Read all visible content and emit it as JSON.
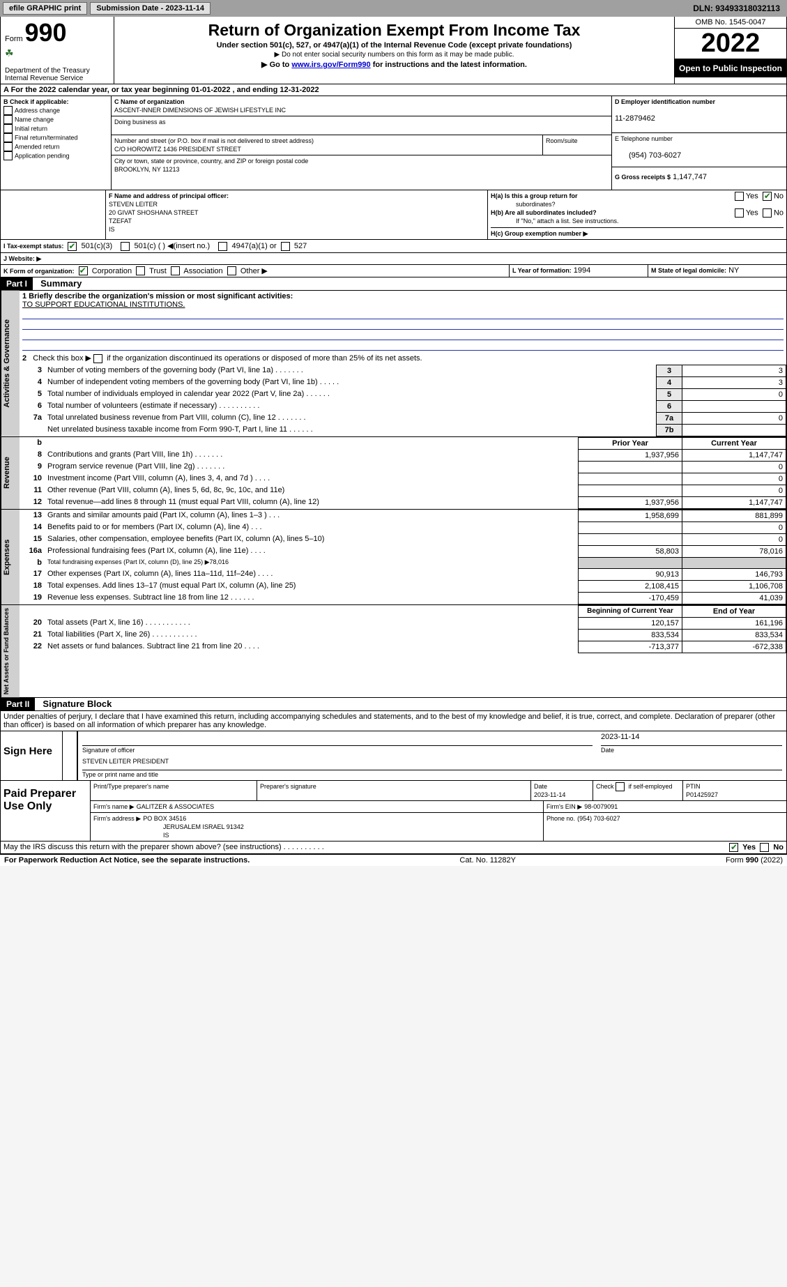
{
  "topbar": {
    "efile": "efile GRAPHIC print",
    "submission": "Submission Date - 2023-11-14",
    "dln": "DLN: 93493318032113"
  },
  "header": {
    "form_label_small": "Form",
    "form_number": "990",
    "dept": "Department of the Treasury",
    "irs": "Internal Revenue Service",
    "title": "Return of Organization Exempt From Income Tax",
    "sub1": "Under section 501(c), 527, or 4947(a)(1) of the Internal Revenue Code (except private foundations)",
    "sub2": "▶ Do not enter social security numbers on this form as it may be made public.",
    "sub3_pre": "▶ Go to ",
    "sub3_link": "www.irs.gov/Form990",
    "sub3_post": " for instructions and the latest information.",
    "omb": "OMB No. 1545-0047",
    "year": "2022",
    "open": "Open to Public Inspection"
  },
  "A_line": "A For the 2022 calendar year, or tax year beginning 01-01-2022     , and ending 12-31-2022",
  "B": {
    "label": "B Check if applicable:",
    "opts": [
      "Address change",
      "Name change",
      "Initial return",
      "Final return/terminated",
      "Amended return",
      "Application pending"
    ]
  },
  "C": {
    "label": "C Name of organization",
    "name": "ASCENT-INNER DIMENSIONS OF JEWISH LIFESTYLE INC",
    "dba_label": "Doing business as",
    "addr_label": "Number and street (or P.O. box if mail is not delivered to street address)",
    "room_label": "Room/suite",
    "addr": "C/O HOROWITZ 1436 PRESIDENT STREET",
    "city_label": "City or town, state or province, country, and ZIP or foreign postal code",
    "city": "BROOKLYN, NY  11213"
  },
  "D": {
    "label": "D Employer identification number",
    "value": "11-2879462"
  },
  "E": {
    "label": "E Telephone number",
    "value": "(954) 703-6027"
  },
  "G": {
    "label": "G Gross receipts $",
    "value": "1,147,747"
  },
  "F": {
    "label": "F  Name and address of principal officer:",
    "name": "STEVEN LEITER",
    "addr1": "20 GIVAT SHOSHANA STREET",
    "addr2": "TZEFAT",
    "addr3": "IS"
  },
  "H": {
    "a_label": "H(a)  Is this a group return for",
    "a_label2": "subordinates?",
    "b_label": "H(b)  Are all subordinates included?",
    "note": "If \"No,\" attach a list. See instructions.",
    "c_label": "H(c)  Group exemption number ▶",
    "yes": "Yes",
    "no": "No"
  },
  "I": {
    "label": "I   Tax-exempt status:",
    "opt1": "501(c)(3)",
    "opt2": "501(c) (  ) ◀(insert no.)",
    "opt3": "4947(a)(1) or",
    "opt4": "527"
  },
  "J": {
    "label": "J   Website: ▶"
  },
  "K": {
    "label": "K Form of organization:",
    "opts": [
      "Corporation",
      "Trust",
      "Association",
      "Other ▶"
    ]
  },
  "L": {
    "label": "L Year of formation:",
    "value": "1994"
  },
  "M": {
    "label": "M State of legal domicile:",
    "value": "NY"
  },
  "partI": {
    "tag": "Part I",
    "title": "Summary"
  },
  "q1": {
    "label": "1   Briefly describe the organization's mission or most significant activities:",
    "text": "TO SUPPORT EDUCATIONAL INSTITUTIONS."
  },
  "q2": "2   Check this box ▶         if the organization discontinued its operations or disposed of more than 25% of its net assets.",
  "lines_gov": [
    {
      "n": "3",
      "text": "Number of voting members of the governing body (Part VI, line 1a)   .    .    .    .    .    .    .",
      "box": "3",
      "val": "3"
    },
    {
      "n": "4",
      "text": "Number of independent voting members of the governing body (Part VI, line 1b)   .    .    .    .    .",
      "box": "4",
      "val": "3"
    },
    {
      "n": "5",
      "text": "Total number of individuals employed in calendar year 2022 (Part V, line 2a)   .    .    .    .    .    .",
      "box": "5",
      "val": "0"
    },
    {
      "n": "6",
      "text": "Total number of volunteers (estimate if necessary)   .    .    .    .    .    .    .    .    .    .",
      "box": "6",
      "val": ""
    },
    {
      "n": "7a",
      "text": "Total unrelated business revenue from Part VIII, column (C), line 12   .    .    .    .    .    .    .",
      "box": "7a",
      "val": "0"
    },
    {
      "n": "",
      "text": "Net unrelated business taxable income from Form 990-T, Part I, line 11    .    .    .    .    .    .",
      "box": "7b",
      "val": ""
    }
  ],
  "colhead": {
    "b": "b",
    "prior": "Prior Year",
    "curr": "Current Year"
  },
  "revenue": [
    {
      "n": "8",
      "text": "Contributions and grants (Part VIII, line 1h)   .    .    .    .    .    .    .",
      "p": "1,937,956",
      "c": "1,147,747"
    },
    {
      "n": "9",
      "text": "Program service revenue (Part VIII, line 2g)    .    .    .    .    .    .    .",
      "p": "",
      "c": "0"
    },
    {
      "n": "10",
      "text": "Investment income (Part VIII, column (A), lines 3, 4, and 7d )   .    .    .    .",
      "p": "",
      "c": "0"
    },
    {
      "n": "11",
      "text": "Other revenue (Part VIII, column (A), lines 5, 6d, 8c, 9c, 10c, and 11e)",
      "p": "",
      "c": "0"
    },
    {
      "n": "12",
      "text": "Total revenue—add lines 8 through 11 (must equal Part VIII, column (A), line 12)",
      "p": "1,937,956",
      "c": "1,147,747"
    }
  ],
  "expenses": [
    {
      "n": "13",
      "text": "Grants and similar amounts paid (Part IX, column (A), lines 1–3 )   .    .    .",
      "p": "1,958,699",
      "c": "881,899"
    },
    {
      "n": "14",
      "text": "Benefits paid to or for members (Part IX, column (A), line 4)   .    .    .",
      "p": "",
      "c": "0"
    },
    {
      "n": "15",
      "text": "Salaries, other compensation, employee benefits (Part IX, column (A), lines 5–10)",
      "p": "",
      "c": "0"
    },
    {
      "n": "16a",
      "text": "Professional fundraising fees (Part IX, column (A), line 11e)   .    .    .    .",
      "p": "58,803",
      "c": "78,016"
    },
    {
      "n": "b",
      "text": "Total fundraising expenses (Part IX, column (D), line 25) ▶78,016",
      "p": null,
      "c": null
    },
    {
      "n": "17",
      "text": "Other expenses (Part IX, column (A), lines 11a–11d, 11f–24e)   .    .    .    .",
      "p": "90,913",
      "c": "146,793"
    },
    {
      "n": "18",
      "text": "Total expenses. Add lines 13–17 (must equal Part IX, column (A), line 25)",
      "p": "2,108,415",
      "c": "1,106,708"
    },
    {
      "n": "19",
      "text": "Revenue less expenses. Subtract line 18 from line 12   .    .    .    .    .    .",
      "p": "-170,459",
      "c": "41,039"
    }
  ],
  "nethead": {
    "b": "Beginning of Current Year",
    "e": "End of Year"
  },
  "net": [
    {
      "n": "20",
      "text": "Total assets (Part X, line 16)   .    .    .    .    .    .    .    .    .    .    .",
      "p": "120,157",
      "c": "161,196"
    },
    {
      "n": "21",
      "text": "Total liabilities (Part X, line 26)   .    .    .    .    .    .    .    .    .    .    .",
      "p": "833,534",
      "c": "833,534"
    },
    {
      "n": "22",
      "text": "Net assets or fund balances. Subtract line 21 from line 20   .    .    .    .",
      "p": "-713,377",
      "c": "-672,338"
    }
  ],
  "partII": {
    "tag": "Part II",
    "title": "Signature Block"
  },
  "perjury": "Under penalties of perjury, I declare that I have examined this return, including accompanying schedules and statements, and to the best of my knowledge and belief, it is true, correct, and complete. Declaration of preparer (other than officer) is based on all information of which preparer has any knowledge.",
  "sign": {
    "here": "Sign Here",
    "sig_label": "Signature of officer",
    "date_label": "Date",
    "date": "2023-11-14",
    "name": "STEVEN LEITER  PRESIDENT",
    "name_label": "Type or print name and title"
  },
  "prep": {
    "title": "Paid Preparer Use Only",
    "h1": "Print/Type preparer's name",
    "h2": "Preparer's signature",
    "h3": "Date",
    "h3v": "2023-11-14",
    "h4": "Check         if self-employed",
    "h5": "PTIN",
    "ptin": "P01425927",
    "firm_label": "Firm's name     ▶",
    "firm": "GALITZER & ASSOCIATES",
    "ein_label": "Firm's EIN ▶",
    "ein": "98-0079091",
    "addr_label": "Firm's address ▶",
    "addr1": "PO BOX 34516",
    "addr2": "JERUSALEM ISRAEL  91342",
    "addr3": "IS",
    "phone_label": "Phone no.",
    "phone": "(954) 703-6027"
  },
  "discuss": "May the IRS discuss this return with the preparer shown above? (see instructions)    .    .    .    .    .    .    .    .    .    .",
  "footer": {
    "pra": "For Paperwork Reduction Act Notice, see the separate instructions.",
    "cat": "Cat. No. 11282Y",
    "form": "Form 990 (2022)"
  },
  "vtabs": {
    "gov": "Activities & Governance",
    "rev": "Revenue",
    "exp": "Expenses",
    "net": "Net Assets or Fund Balances"
  }
}
